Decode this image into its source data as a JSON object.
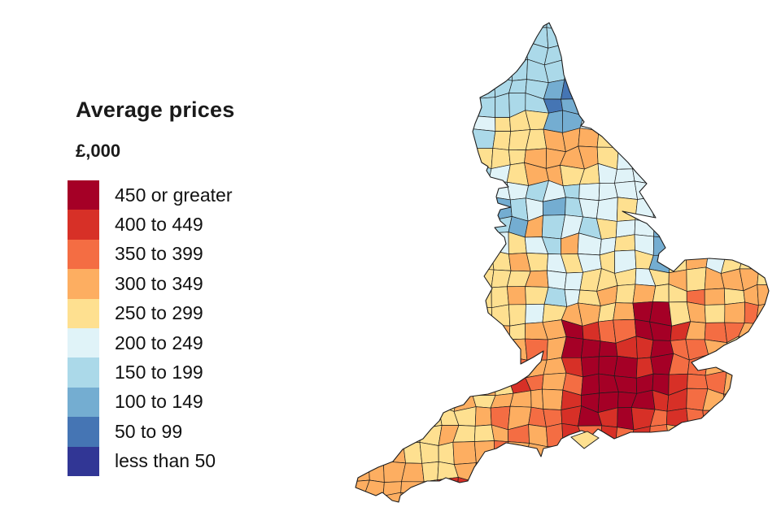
{
  "page": {
    "background": "#ffffff"
  },
  "legend": {
    "title": "Average prices",
    "subtitle": "£,000",
    "items": [
      {
        "band": "a",
        "label": "450 or greater",
        "color": "#a50026"
      },
      {
        "band": "b",
        "label": "400 to 449",
        "color": "#d73027"
      },
      {
        "band": "c",
        "label": "350 to 399",
        "color": "#f46d43"
      },
      {
        "band": "d",
        "label": "300 to 349",
        "color": "#fdae61"
      },
      {
        "band": "e",
        "label": "250 to 299",
        "color": "#fee090"
      },
      {
        "band": "f",
        "label": "200 to 249",
        "color": "#e0f3f8"
      },
      {
        "band": "g",
        "label": "150 to 199",
        "color": "#abd9e9"
      },
      {
        "band": "h",
        "label": "100 to 149",
        "color": "#74add1"
      },
      {
        "band": "i",
        "label": "50 to 99",
        "color": "#4575b4"
      },
      {
        "band": "j",
        "label": "less than 50",
        "color": "#313695"
      }
    ]
  },
  "map": {
    "description": "England local-authority choropleth of average house prices; blues in the North, pale yellows and blues in the Midlands, oranges in East Anglia and the South West, dark reds around London and the Home Counties",
    "boundary_color": "#1c1c1c",
    "band_colors": {
      "a": "#a50026",
      "b": "#d73027",
      "c": "#f46d43",
      "d": "#fdae61",
      "e": "#fee090",
      "f": "#e0f3f8",
      "g": "#abd9e9",
      "h": "#74add1",
      "i": "#4575b4",
      "j": "#313695"
    },
    "island": {
      "name": "isle-of-wight",
      "band": "e"
    },
    "grid": {
      "cols": 24,
      "rows": 29,
      "pattern": [
        "gggggggggggggggggggggggg",
        "gggggggggggggggggggggggg",
        "gggggggggggggggggggggggg",
        "gggggggggggghggggggggggg",
        "ffffffggggghihgggggggggg",
        "ffffffgggggihhgggggggggg",
        "ggggggffeeehhfffffffffff",
        "fffffffgeeedddeffgffffff",
        "ggggggfeeeddddefffffffff",
        "fffffffgfeddeeffffffffff",
        "ggggggghffgfgfffffffffff",
        "fffffffghgfhgffeffffffff",
        "ffffffffghdgfgeffhhfffff",
        "fffffffgfefgdffefhefffff",
        "eeeeeeeeedefefefehedfeee",
        "eeeeeeeeeedffeeefededdde",
        "eeeeeeeeedegfededeecdedd",
        "eeeeeeeeeefeddedaaededcd",
        "dddddddddeddabccaabdccdd",
        "ddddddddedcdaaabbaccdecc",
        "dddddddddcddbaaabaccdcdc",
        "ddddddedebcdcaaaaabccdcc",
        "dddddededdddbaaaabbcdccc",
        "ddddeeedcdccbababcbcccdd",
        "dddeedeedcdcbcbcbcdcdddd",
        "dddeeeddcddedcccdddddddd",
        "ddddeedddddddddddddddddd",
        "dddddbbddddddddddddddddd",
        "dddddbdddddddddddddddddd"
      ]
    }
  }
}
